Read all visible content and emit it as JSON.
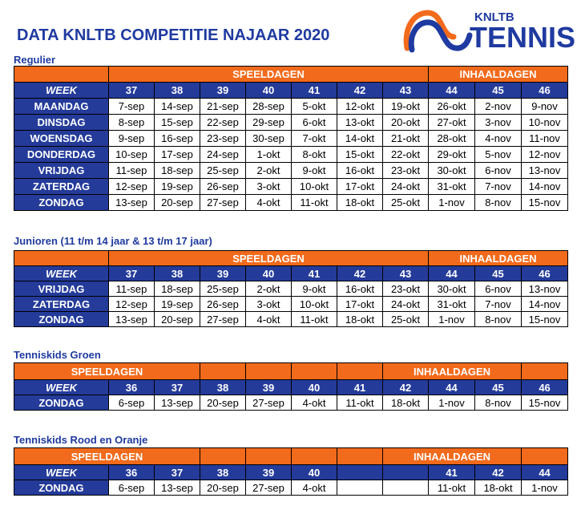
{
  "title": "DATA KNLTB COMPETITIE NAJAAR 2020",
  "logo": {
    "top": "KNLTB",
    "main": "TENNIS",
    "colors": {
      "blue": "#1f3aa0",
      "orange": "#f26a1b"
    }
  },
  "labels": {
    "week": "WEEK",
    "speeldagen": "SPEELDAGEN",
    "inhaaldagen": "INHAALDAGEN"
  },
  "regulier": {
    "title": "Regulier",
    "weeks": [
      "37",
      "38",
      "39",
      "40",
      "41",
      "42",
      "43",
      "44",
      "45",
      "46"
    ],
    "rows": [
      {
        "day": "MAANDAG",
        "dates": [
          "7-sep",
          "14-sep",
          "21-sep",
          "28-sep",
          "5-okt",
          "12-okt",
          "19-okt",
          "26-okt",
          "2-nov",
          "9-nov"
        ]
      },
      {
        "day": "DINSDAG",
        "dates": [
          "8-sep",
          "15-sep",
          "22-sep",
          "29-sep",
          "6-okt",
          "13-okt",
          "20-okt",
          "27-okt",
          "3-nov",
          "10-nov"
        ]
      },
      {
        "day": "WOENSDAG",
        "dates": [
          "9-sep",
          "16-sep",
          "23-sep",
          "30-sep",
          "7-okt",
          "14-okt",
          "21-okt",
          "28-okt",
          "4-nov",
          "11-nov"
        ]
      },
      {
        "day": "DONDERDAG",
        "dates": [
          "10-sep",
          "17-sep",
          "24-sep",
          "1-okt",
          "8-okt",
          "15-okt",
          "22-okt",
          "29-okt",
          "5-nov",
          "12-nov"
        ]
      },
      {
        "day": "VRIJDAG",
        "dates": [
          "11-sep",
          "18-sep",
          "25-sep",
          "2-okt",
          "9-okt",
          "16-okt",
          "23-okt",
          "30-okt",
          "6-nov",
          "13-nov"
        ]
      },
      {
        "day": "ZATERDAG",
        "dates": [
          "12-sep",
          "19-sep",
          "26-sep",
          "3-okt",
          "10-okt",
          "17-okt",
          "24-okt",
          "31-okt",
          "7-nov",
          "14-nov"
        ]
      },
      {
        "day": "ZONDAG",
        "dates": [
          "13-sep",
          "20-sep",
          "27-sep",
          "4-okt",
          "11-okt",
          "18-okt",
          "25-okt",
          "1-nov",
          "8-nov",
          "15-nov"
        ]
      }
    ]
  },
  "junioren": {
    "title": "Junioren (11 t/m 14 jaar & 13 t/m 17 jaar)",
    "weeks": [
      "37",
      "38",
      "39",
      "40",
      "41",
      "42",
      "43",
      "44",
      "45",
      "46"
    ],
    "rows": [
      {
        "day": "VRIJDAG",
        "dates": [
          "11-sep",
          "18-sep",
          "25-sep",
          "2-okt",
          "9-okt",
          "16-okt",
          "23-okt",
          "30-okt",
          "6-nov",
          "13-nov"
        ]
      },
      {
        "day": "ZATERDAG",
        "dates": [
          "12-sep",
          "19-sep",
          "26-sep",
          "3-okt",
          "10-okt",
          "17-okt",
          "24-okt",
          "31-okt",
          "7-nov",
          "14-nov"
        ]
      },
      {
        "day": "ZONDAG",
        "dates": [
          "13-sep",
          "20-sep",
          "27-sep",
          "4-okt",
          "11-okt",
          "18-okt",
          "25-okt",
          "1-nov",
          "8-nov",
          "15-nov"
        ]
      }
    ]
  },
  "groen": {
    "title": "Tenniskids Groen",
    "weeks": [
      "36",
      "37",
      "38",
      "39",
      "40",
      "41",
      "42",
      "44",
      "45",
      "46"
    ],
    "rows": [
      {
        "day": "ZONDAG",
        "dates": [
          "6-sep",
          "13-sep",
          "20-sep",
          "27-sep",
          "4-okt",
          "11-okt",
          "18-okt",
          "1-nov",
          "8-nov",
          "15-nov"
        ]
      }
    ]
  },
  "rood": {
    "title": "Tenniskids Rood en Oranje",
    "weeks": [
      "36",
      "37",
      "38",
      "39",
      "40",
      "",
      "",
      "41",
      "42",
      "44"
    ],
    "rows": [
      {
        "day": "ZONDAG",
        "dates": [
          "6-sep",
          "13-sep",
          "20-sep",
          "27-sep",
          "4-okt",
          "",
          "",
          "11-okt",
          "18-okt",
          "1-nov"
        ]
      }
    ]
  }
}
